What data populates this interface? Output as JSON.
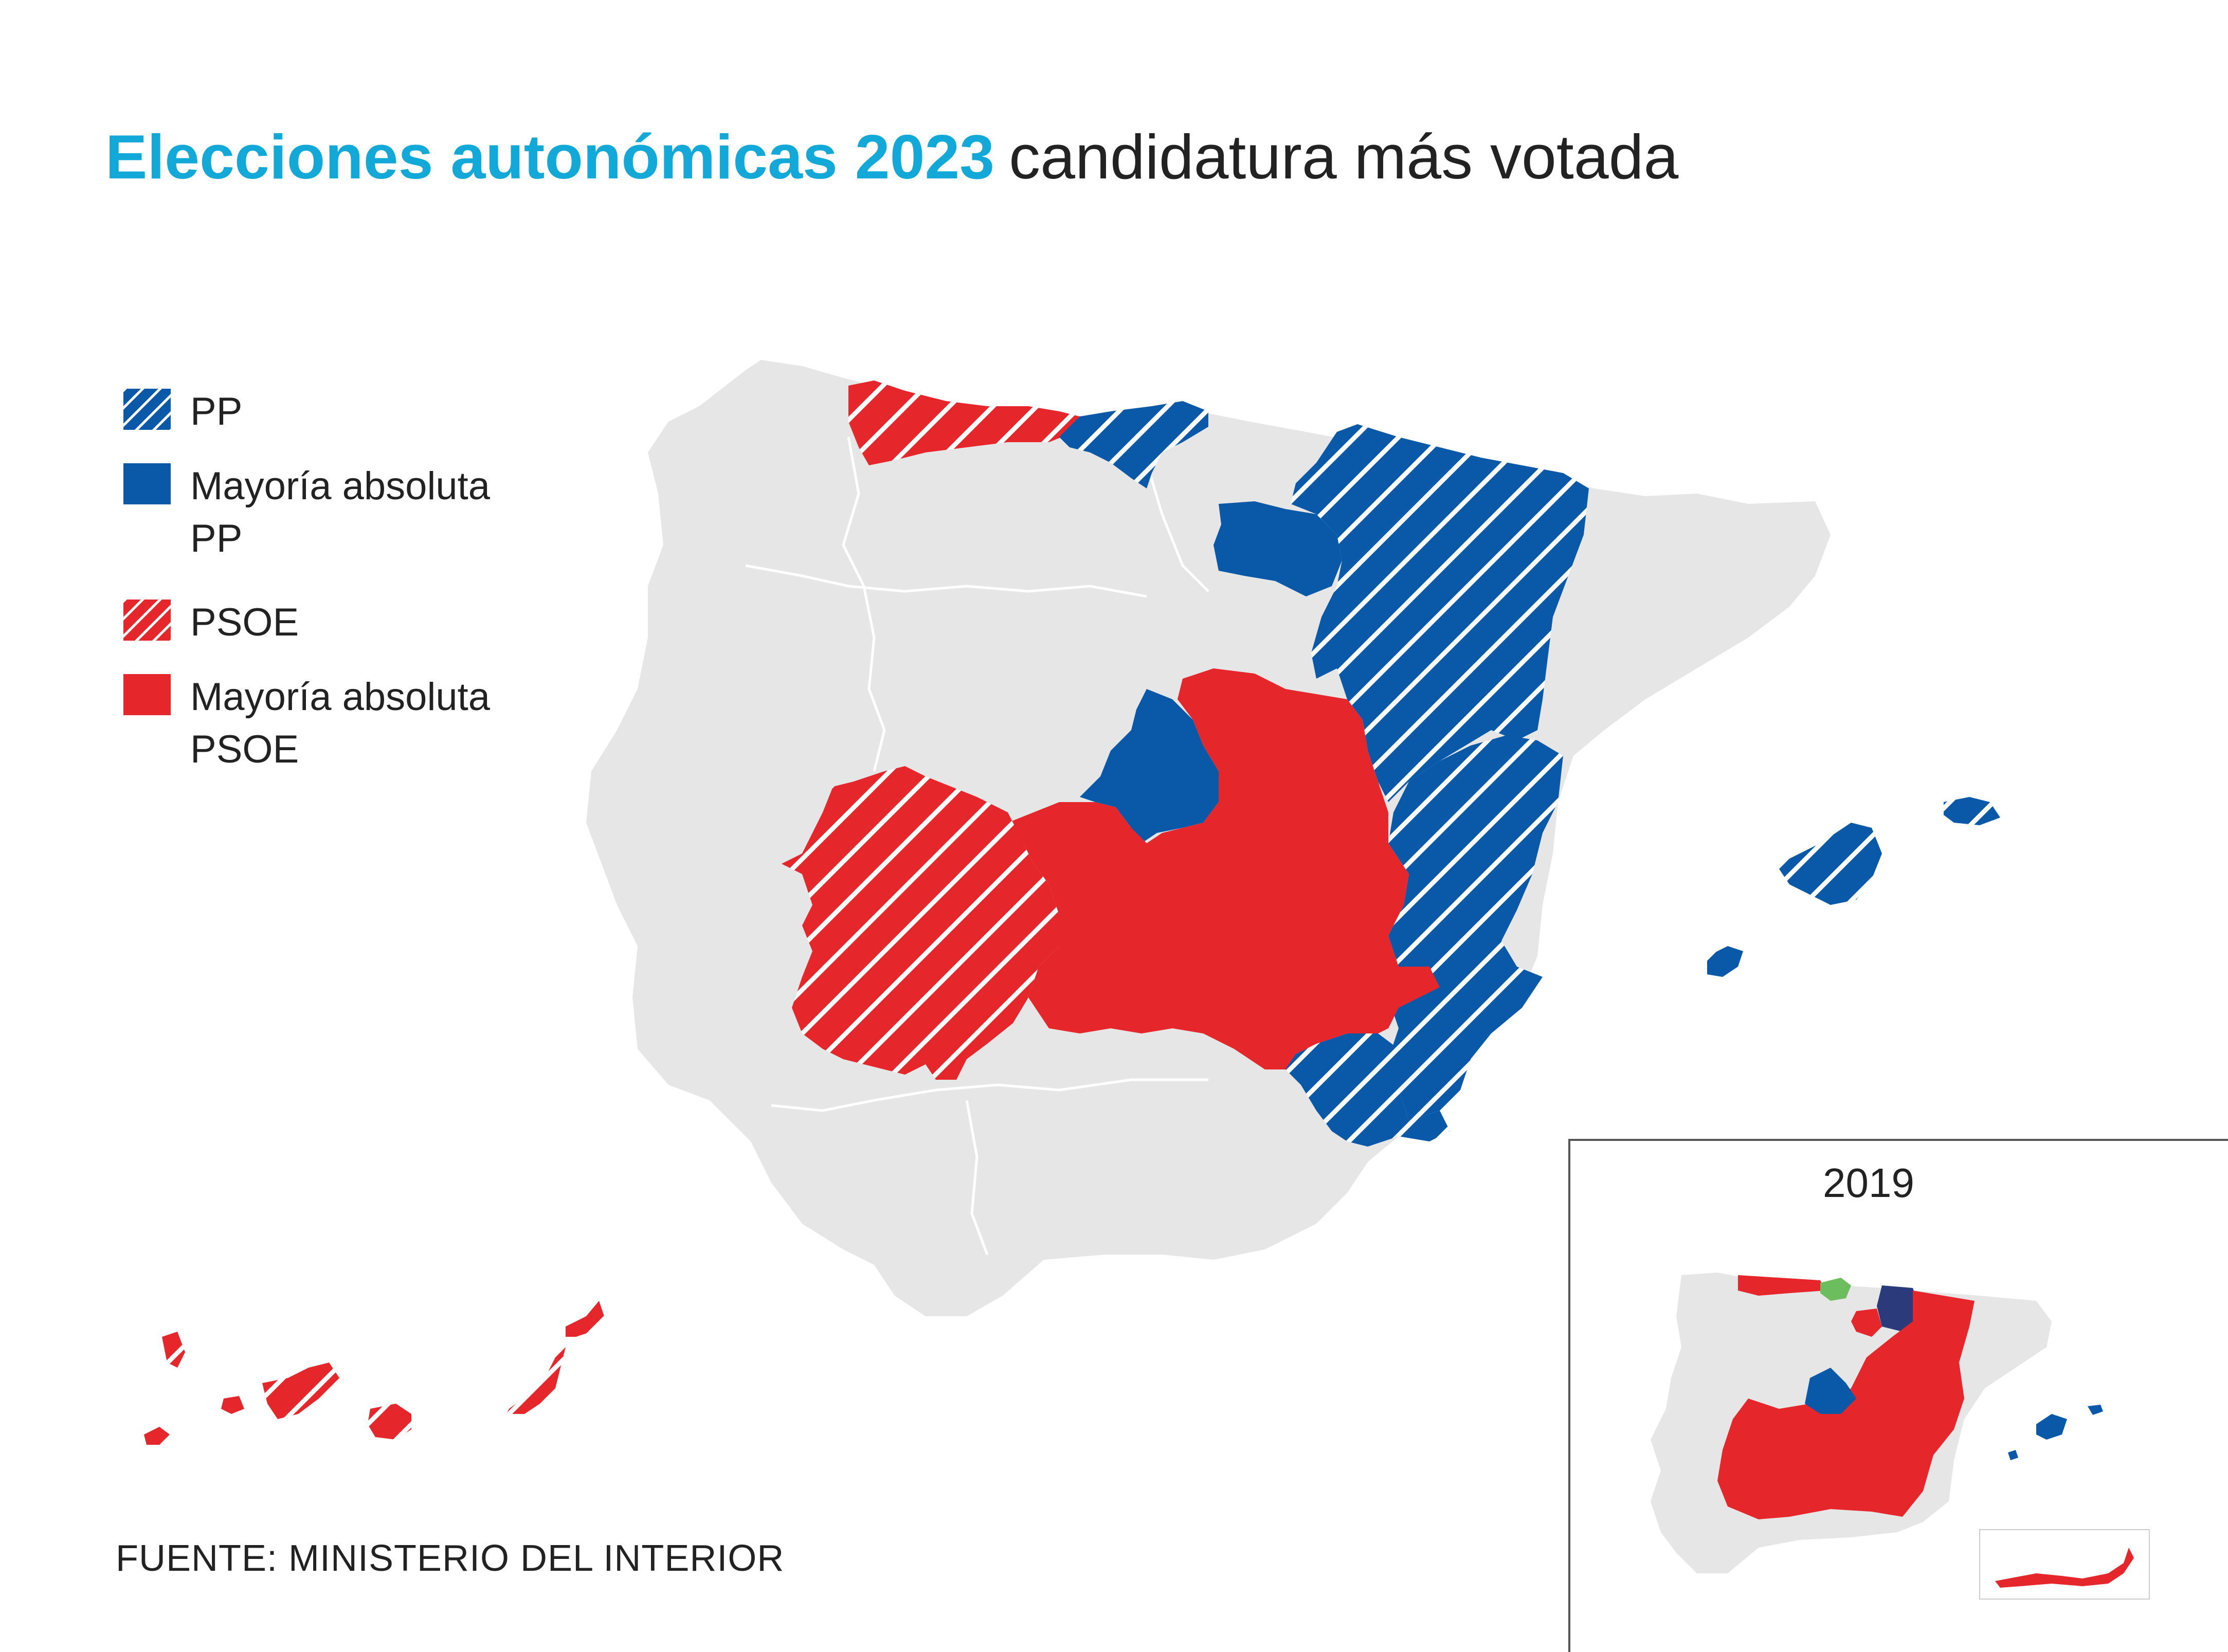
{
  "title": {
    "main": "Elecciones autonómicas 2023",
    "sub": "candidatura más votada"
  },
  "colors": {
    "pp": "#0a58a8",
    "psoe": "#e5262b",
    "land": "#e6e6e6",
    "title_accent": "#12a9d8",
    "regionalist_green": "#6cbd5e",
    "navarra_navy": "#2a3a7a"
  },
  "legend": [
    {
      "key": "pp",
      "label_lines": [
        "PP"
      ],
      "style": "hatched",
      "color": "#0a58a8"
    },
    {
      "key": "pp-majority",
      "label_lines": [
        "Mayoría absoluta",
        "PP"
      ],
      "style": "solid",
      "color": "#0a58a8"
    },
    {
      "key": "psoe",
      "label_lines": [
        "PSOE"
      ],
      "style": "hatched",
      "color": "#e5262b"
    },
    {
      "key": "psoe-majority",
      "label_lines": [
        "Mayoría absoluta",
        "PSOE"
      ],
      "style": "solid",
      "color": "#e5262b"
    }
  ],
  "regions_2023": [
    {
      "name": "Asturias",
      "result": "PSOE"
    },
    {
      "name": "Cantabria",
      "result": "PP"
    },
    {
      "name": "La Rioja",
      "result": "Mayoría absoluta PP"
    },
    {
      "name": "Aragón",
      "result": "PP"
    },
    {
      "name": "Comunidad de Madrid",
      "result": "Mayoría absoluta PP"
    },
    {
      "name": "Extremadura",
      "result": "PSOE"
    },
    {
      "name": "Castilla-La Mancha",
      "result": "Mayoría absoluta PSOE"
    },
    {
      "name": "Comunitat Valenciana",
      "result": "PP"
    },
    {
      "name": "Región de Murcia",
      "result": "PP"
    },
    {
      "name": "Illes Balears",
      "result": "PP"
    },
    {
      "name": "Canarias",
      "result": "PSOE"
    }
  ],
  "inset": {
    "year": "2019"
  },
  "source": "FUENTE: MINISTERIO DEL INTERIOR"
}
